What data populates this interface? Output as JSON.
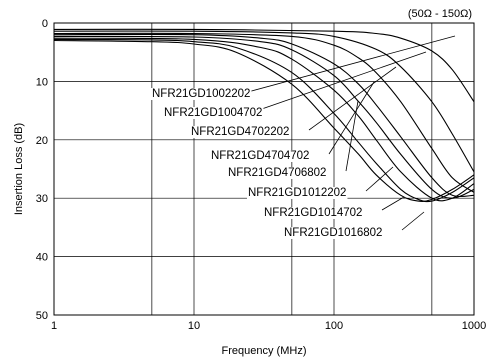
{
  "chart_data": {
    "type": "line",
    "title": "",
    "note": "(50Ω - 150Ω)",
    "xlabel": "Frequency (MHz)",
    "ylabel": "Insertion Loss (dB)",
    "xscale": "log",
    "xlim": [
      1,
      1000
    ],
    "ylim": [
      0,
      50
    ],
    "y_inverted": true,
    "grid": true,
    "x_ticks": [
      {
        "value": 1,
        "label": "1"
      },
      {
        "value": 10,
        "label": "10"
      },
      {
        "value": 100,
        "label": "100"
      },
      {
        "value": 1000,
        "label": "1000"
      }
    ],
    "y_ticks": [
      {
        "value": 0,
        "label": "0"
      },
      {
        "value": 10,
        "label": "10"
      },
      {
        "value": 20,
        "label": "20"
      },
      {
        "value": 30,
        "label": "30"
      },
      {
        "value": 40,
        "label": "40"
      },
      {
        "value": 50,
        "label": "50"
      }
    ],
    "series": [
      {
        "name": "NFR21GD1002202",
        "x": [
          1,
          10,
          100,
          200,
          300,
          500,
          700,
          1000
        ],
        "y": [
          1.1,
          1.1,
          1.4,
          1.8,
          2.6,
          4.8,
          8.0,
          13.5
        ]
      },
      {
        "name": "NFR21GD1004702",
        "x": [
          1,
          10,
          50,
          100,
          200,
          300,
          500,
          700,
          1000
        ],
        "y": [
          1.4,
          1.4,
          1.7,
          2.3,
          4.5,
          7.5,
          13.5,
          19.0,
          25.5
        ]
      },
      {
        "name": "NFR21GD4702202",
        "x": [
          1,
          10,
          50,
          100,
          150,
          200,
          300,
          500,
          700,
          1000
        ],
        "y": [
          1.8,
          1.8,
          2.3,
          3.8,
          6.0,
          8.5,
          13.5,
          21.5,
          26.5,
          29.0
        ]
      },
      {
        "name": "NFR21GD4704702",
        "x": [
          1,
          10,
          30,
          50,
          100,
          150,
          200,
          300,
          500,
          700,
          1000
        ],
        "y": [
          2.0,
          2.0,
          2.6,
          3.6,
          7.0,
          10.5,
          14.0,
          19.5,
          26.5,
          29.5,
          29.5
        ]
      },
      {
        "name": "NFR21GD4706802",
        "x": [
          1,
          10,
          30,
          50,
          100,
          150,
          200,
          300,
          500,
          700,
          1000
        ],
        "y": [
          2.3,
          2.4,
          3.2,
          4.6,
          9.0,
          13.5,
          17.0,
          22.5,
          28.5,
          30.0,
          28.5
        ]
      },
      {
        "name": "NFR21GD1012202",
        "x": [
          1,
          10,
          30,
          50,
          100,
          150,
          200,
          300,
          500,
          700,
          1000
        ],
        "y": [
          2.6,
          2.8,
          4.2,
          6.2,
          11.5,
          16.0,
          20.0,
          25.5,
          30.0,
          30.0,
          27.5
        ]
      },
      {
        "name": "NFR21GD1014702",
        "x": [
          1,
          5,
          10,
          20,
          50,
          100,
          150,
          200,
          300,
          400,
          500,
          700,
          1000
        ],
        "y": [
          2.8,
          2.9,
          3.2,
          4.2,
          8.5,
          15.5,
          20.5,
          24.0,
          28.5,
          30.2,
          30.5,
          29.0,
          26.5
        ]
      },
      {
        "name": "NFR21GD1016802",
        "x": [
          1,
          5,
          10,
          20,
          50,
          100,
          150,
          200,
          300,
          400,
          500,
          700,
          1000
        ],
        "y": [
          3.0,
          3.2,
          3.6,
          5.0,
          10.5,
          18.0,
          22.5,
          26.0,
          29.5,
          30.5,
          30.2,
          28.5,
          26.0
        ]
      }
    ]
  }
}
